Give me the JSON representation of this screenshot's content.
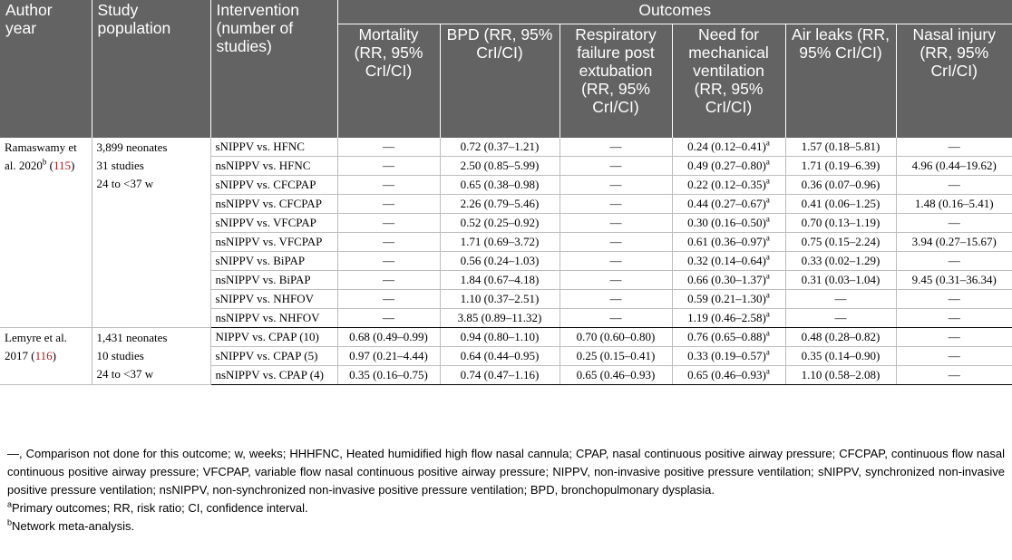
{
  "headers": {
    "author": "Author year",
    "population": "Study population",
    "intervention": "Intervention (number of studies)",
    "outcomes": "Outcomes",
    "mortality": "Mortality (RR, 95% CrI/CI)",
    "bpd": "BPD (RR, 95% CrI/CI)",
    "resp": "Respiratory failure post extubation (RR, 95% CrI/CI)",
    "mech": "Need for mechanical ventilation (RR, 95% CrI/CI)",
    "air": "Air leaks (RR, 95% CrI/CI)",
    "nasal": "Nasal injury (RR, 95% CrI/CI)"
  },
  "groups": [
    {
      "author": "Ramaswamy et al. 2020",
      "author_sup": "b",
      "ref": "115",
      "population": [
        "3,899 neonates",
        "31 studies",
        "24 to <37 w"
      ],
      "rows": [
        {
          "intervention": "sNIPPV vs. HFNC",
          "mortality": "—",
          "bpd": "0.72 (0.37–1.21)",
          "resp": "—",
          "mech": "0.24 (0.12–0.41)",
          "mech_sup": "a",
          "air": "1.57 (0.18–5.81)",
          "nasal": "—"
        },
        {
          "intervention": "nsNIPPV vs. HFNC",
          "mortality": "—",
          "bpd": "2.50 (0.85–5.99)",
          "resp": "—",
          "mech": "0.49 (0.27–0.80)",
          "mech_sup": "a",
          "air": "1.71 (0.19–6.39)",
          "nasal": "4.96 (0.44–19.62)"
        },
        {
          "intervention": "sNIPPV vs. CFCPAP",
          "mortality": "—",
          "bpd": "0.65 (0.38–0.98)",
          "resp": "—",
          "mech": "0.22 (0.12–0.35)",
          "mech_sup": "a",
          "air": "0.36 (0.07–0.96)",
          "nasal": "—"
        },
        {
          "intervention": "nsNIPPV vs. CFCPAP",
          "mortality": "—",
          "bpd": "2.26 (0.79–5.46)",
          "resp": "—",
          "mech": "0.44 (0.27–0.67)",
          "mech_sup": "a",
          "air": "0.41 (0.06–1.25)",
          "nasal": "1.48 (0.16–5.41)"
        },
        {
          "intervention": "sNIPPV vs. VFCPAP",
          "mortality": "—",
          "bpd": "0.52 (0.25–0.92)",
          "resp": "—",
          "mech": "0.30 (0.16–0.50)",
          "mech_sup": "a",
          "air": "0.70 (0.13–1.19)",
          "nasal": "—"
        },
        {
          "intervention": "nsNIPPV vs. VFCPAP",
          "mortality": "—",
          "bpd": "1.71 (0.69–3.72)",
          "resp": "—",
          "mech": "0.61 (0.36–0.97)",
          "mech_sup": "a",
          "air": "0.75 (0.15–2.24)",
          "nasal": "3.94 (0.27–15.67)"
        },
        {
          "intervention": "sNIPPV vs. BiPAP",
          "mortality": "—",
          "bpd": "0.56 (0.24–1.03)",
          "resp": "—",
          "mech": "0.32 (0.14–0.64)",
          "mech_sup": "a",
          "air": "0.33 (0.02–1.29)",
          "nasal": "—"
        },
        {
          "intervention": "nsNIPPV vs. BiPAP",
          "mortality": "—",
          "bpd": "1.84 (0.67–4.18)",
          "resp": "—",
          "mech": "0.66 (0.30–1.37)",
          "mech_sup": "a",
          "air": "0.31 (0.03–1.04)",
          "nasal": "9.45 (0.31–36.34)"
        },
        {
          "intervention": "sNIPPV vs. NHFOV",
          "mortality": "—",
          "bpd": "1.10 (0.37–2.51)",
          "resp": "—",
          "mech": "0.59 (0.21–1.30)",
          "mech_sup": "a",
          "air": "—",
          "nasal": "—"
        },
        {
          "intervention": "nsNIPPV vs. NHFOV",
          "mortality": "—",
          "bpd": "3.85 (0.89–11.32)",
          "resp": "—",
          "mech": "1.19 (0.46–2.58)",
          "mech_sup": "a",
          "air": "—",
          "nasal": "—"
        }
      ]
    },
    {
      "author": "Lemyre et al. 2017",
      "author_sup": "",
      "ref": "116",
      "population": [
        "1,431 neonates",
        "10 studies",
        "24 to <37 w"
      ],
      "rows": [
        {
          "intervention": "NIPPV vs. CPAP (10)",
          "mortality": "0.68 (0.49–0.99)",
          "bpd": "0.94 (0.80–1.10)",
          "resp": "0.70 (0.60–0.80)",
          "mech": "0.76 (0.65–0.88)",
          "mech_sup": "a",
          "air": "0.48 (0.28–0.82)",
          "nasal": "—"
        },
        {
          "intervention": "sNIPPV vs. CPAP (5)",
          "mortality": "0.97 (0.21–4.44)",
          "bpd": "0.64 (0.44–0.95)",
          "resp": "0.25 (0.15–0.41)",
          "mech": "0.33 (0.19–0.57)",
          "mech_sup": "a",
          "air": "0.35 (0.14–0.90)",
          "nasal": "—"
        },
        {
          "intervention": "nsNIPPV vs. CPAP (4)",
          "mortality": "0.35 (0.16–0.75)",
          "bpd": "0.74 (0.47–1.16)",
          "resp": "0.65 (0.46–0.93)",
          "mech": "0.65 (0.46–0.93)",
          "mech_sup": "a",
          "air": "1.10 (0.58–2.08)",
          "nasal": "—"
        }
      ]
    }
  ],
  "footnotes": {
    "abbrev": "—, Comparison not done for this outcome; w, weeks; HHHFNC, Heated humidified high flow nasal cannula; CPAP, nasal continuous positive airway pressure; CFCPAP, continuous flow nasal continuous positive airway pressure; VFCPAP, variable flow nasal continuous positive airway pressure; NIPPV, non-invasive positive pressure ventilation; sNIPPV, synchronized non-invasive positive pressure ventilation; nsNIPPV, non-synchronized non-invasive positive pressure ventilation; BPD, bronchopulmonary dysplasia.",
    "a_mark": "a",
    "a_text": "Primary outcomes; RR, risk ratio; CI, confidence interval.",
    "b_mark": "b",
    "b_text": "Network meta-analysis."
  },
  "colors": {
    "header_bg": "#636363",
    "header_text": "#ffffff",
    "ref_link": "#b0151b",
    "grid": "#bdbdbd"
  }
}
